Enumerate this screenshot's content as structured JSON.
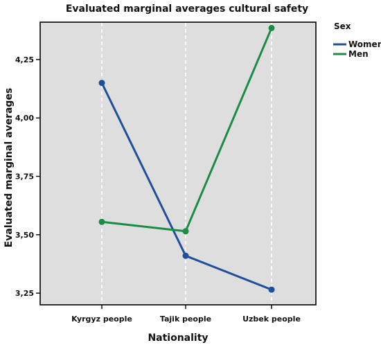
{
  "chart_data": {
    "type": "line",
    "title": "Evaluated marginal averages cultural safety",
    "xlabel": "Nationality",
    "ylabel": "Evaluated marginal averages",
    "categories": [
      "Kyrgyz people",
      "Tajik people",
      "Uzbek people"
    ],
    "y_ticks": [
      3.25,
      3.5,
      3.75,
      4.0,
      4.25
    ],
    "y_tick_labels": [
      "3,25",
      "3,50",
      "3,75",
      "4,00",
      "4,25"
    ],
    "ylim": [
      3.2,
      4.41
    ],
    "grid": "vertical-dashed",
    "legend_position": "right",
    "legend_title": "Sex",
    "series": [
      {
        "name": "Women",
        "values": [
          4.15,
          3.41,
          3.265
        ],
        "color": "#1f4e9c"
      },
      {
        "name": "Men",
        "values": [
          3.555,
          3.515,
          4.385
        ],
        "color": "#1b8c44"
      }
    ],
    "plot_background": "#dedede"
  }
}
